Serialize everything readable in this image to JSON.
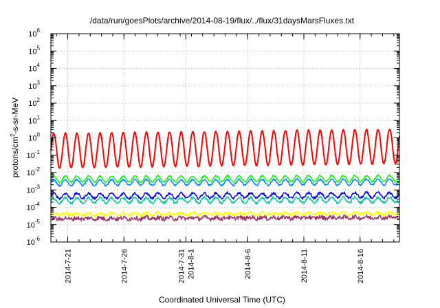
{
  "chart_data": {
    "type": "line",
    "title": "/data/run/goesPlots/archive/2014-08-19/flux/../flux/31daysMarsFluxes.txt",
    "xlabel": "Coordinated Universal Time (UTC)",
    "ylabel": "protons/cm2-s-sr-MeV",
    "ylabel_parts": {
      "pre": "protons/cm",
      "sup": "2",
      "post": "-s-sr-MeV"
    },
    "yscale": "log",
    "ylim": [
      1e-06,
      1000000.0
    ],
    "y_ticks": [
      {
        "mant": "10",
        "exp": "-6",
        "value": 1e-06
      },
      {
        "mant": "10",
        "exp": "-5",
        "value": 1e-05
      },
      {
        "mant": "10",
        "exp": "-4",
        "value": 0.0001
      },
      {
        "mant": "10",
        "exp": "-3",
        "value": 0.001
      },
      {
        "mant": "10",
        "exp": "-2",
        "value": 0.01
      },
      {
        "mant": "10",
        "exp": "-1",
        "value": 0.1
      },
      {
        "mant": "10",
        "exp": "0",
        "value": 1.0
      },
      {
        "mant": "10",
        "exp": "1",
        "value": 10.0
      },
      {
        "mant": "10",
        "exp": "2",
        "value": 100.0
      },
      {
        "mant": "10",
        "exp": "3",
        "value": 1000.0
      },
      {
        "mant": "10",
        "exp": "4",
        "value": 10000.0
      },
      {
        "mant": "10",
        "exp": "5",
        "value": 100000.0
      },
      {
        "mant": "10",
        "exp": "6",
        "value": 1000000.0
      }
    ],
    "x_ticks": [
      {
        "label": [
          "2014-7-21"
        ],
        "day": 21.0
      },
      {
        "label": [
          "2014-7-26"
        ],
        "day": 26.0
      },
      {
        "label": [
          "2014-7-31",
          "2014-8-1"
        ],
        "day": 31.5
      },
      {
        "label": [
          "2014-8-6"
        ],
        "day": 37.0
      },
      {
        "label": [
          "2014-8-11"
        ],
        "day": 42.0
      },
      {
        "label": [
          "2014-8-16"
        ],
        "day": 47.0
      }
    ],
    "x_minor_step": 1,
    "xlim_day": [
      19.5,
      50.5
    ],
    "grid": true,
    "series": [
      {
        "color": "#ff0000",
        "base": 0.18,
        "amp": 1.0,
        "period": 1.03,
        "noise": 0.06,
        "trend": 0.25,
        "width": 2
      },
      {
        "color": "#00ff00",
        "base": 0.0042,
        "amp": 0.17,
        "period": 1.03,
        "noise": 0.1,
        "trend": 0.04,
        "width": 1.5
      },
      {
        "color": "#0080ff",
        "base": 0.0026,
        "amp": 0.17,
        "period": 1.03,
        "noise": 0.1,
        "trend": 0.04,
        "width": 1.5
      },
      {
        "color": "#0000ff",
        "base": 0.00045,
        "amp": 0.15,
        "period": 1.03,
        "noise": 0.14,
        "trend": 0.04,
        "width": 1.5
      },
      {
        "color": "#00c8a0",
        "base": 0.00024,
        "amp": 0.15,
        "period": 1.03,
        "noise": 0.14,
        "trend": 0.04,
        "width": 1.5
      },
      {
        "color": "#ffff00",
        "base": 4e-05,
        "amp": 0.06,
        "period": 1.03,
        "noise": 0.18,
        "trend": 0.05,
        "width": 1.5
      },
      {
        "color": "#a0306a",
        "base": 2.2e-05,
        "amp": 0.04,
        "period": 1.03,
        "noise": 0.24,
        "trend": 0.08,
        "width": 1.5
      }
    ]
  }
}
